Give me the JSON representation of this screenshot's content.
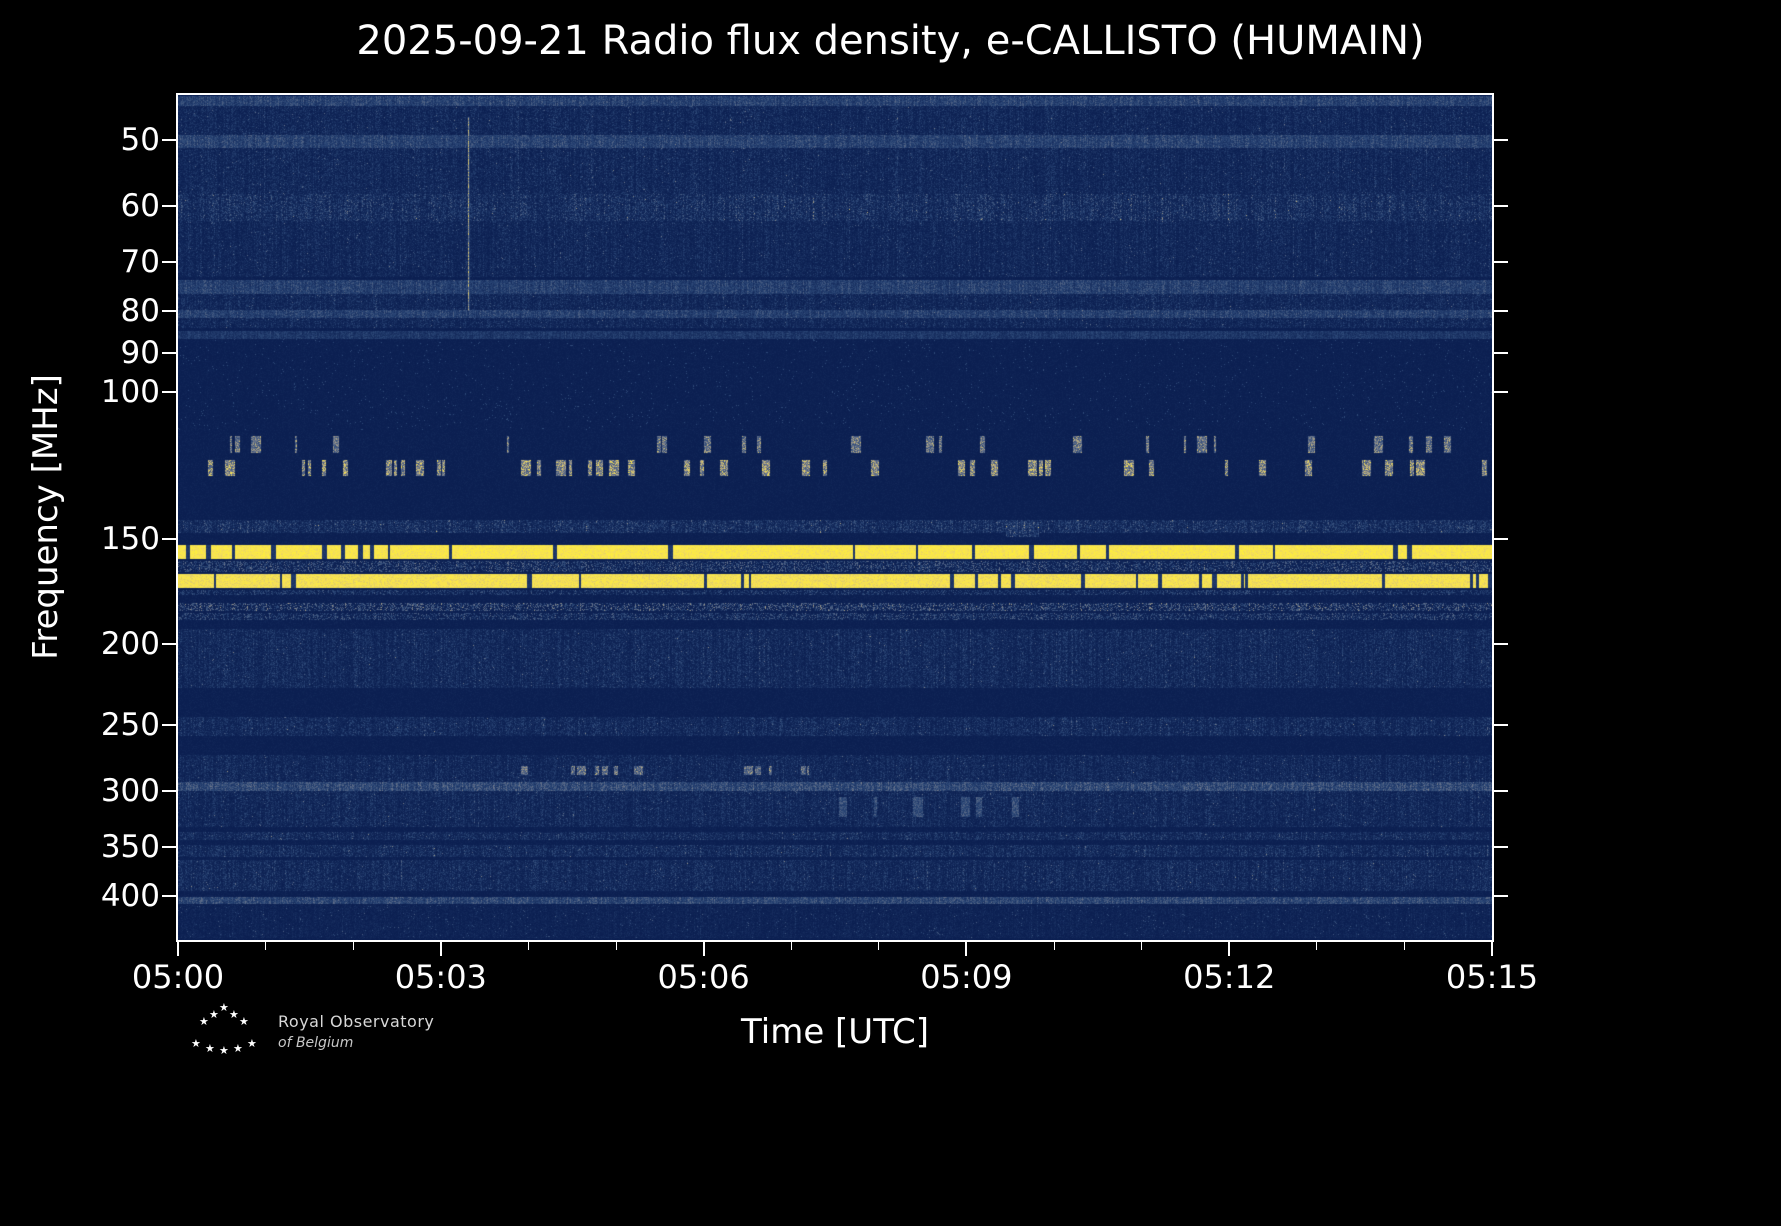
{
  "title": "2025-09-21 Radio flux density, e-CALLISTO (HUMAIN)",
  "axes": {
    "x_label": "Time [UTC]",
    "y_label": "Frequency [MHz]",
    "x_ticks": [
      "05:00",
      "05:03",
      "05:06",
      "05:09",
      "05:12",
      "05:15"
    ],
    "x_minor_per_interval": 3,
    "y_ticks": [
      50,
      60,
      70,
      80,
      90,
      100,
      150,
      200,
      250,
      300,
      350,
      400
    ],
    "y_scale": "log"
  },
  "footer": {
    "logo_line1": "Royal Observatory",
    "logo_line2": "of  Belgium",
    "star_glyph": "★"
  },
  "chart_data": {
    "type": "heatmap",
    "title": "2025-09-21 Radio flux density, e-CALLISTO (HUMAIN)",
    "xlabel": "Time [UTC]",
    "ylabel": "Frequency [MHz]",
    "x_range_utc": [
      "05:00",
      "05:15"
    ],
    "x_tick_labels": [
      "05:00",
      "05:03",
      "05:06",
      "05:09",
      "05:12",
      "05:15"
    ],
    "y_tick_labels_mhz": [
      50,
      60,
      70,
      80,
      90,
      100,
      150,
      200,
      250,
      300,
      350,
      400
    ],
    "y_range_mhz": [
      44.2,
      452
    ],
    "y_scale": "log",
    "legend": "none",
    "grid": false,
    "colormap_stops": [
      [
        0.0,
        [
          9,
          28,
          78
        ]
      ],
      [
        0.3,
        [
          42,
          70,
          118
        ]
      ],
      [
        0.55,
        [
          104,
          116,
          140
        ]
      ],
      [
        0.72,
        [
          180,
          168,
          132
        ]
      ],
      [
        0.88,
        [
          244,
          222,
          92
        ]
      ],
      [
        1.0,
        [
          255,
          240,
          58
        ]
      ]
    ],
    "bands": [
      {
        "f1": 44.3,
        "f2": 45.6,
        "type": "line",
        "amp": 0.42
      },
      {
        "f1": 45.6,
        "f2": 58.0,
        "type": "noise",
        "amp": 0.27
      },
      {
        "f1": 49.4,
        "f2": 51.2,
        "type": "line",
        "amp": 0.42
      },
      {
        "f1": 58.0,
        "f2": 62.5,
        "type": "noise",
        "amp": 0.42
      },
      {
        "f1": 62.5,
        "f2": 73.0,
        "type": "noise",
        "amp": 0.25
      },
      {
        "f1": 73.5,
        "f2": 76.5,
        "type": "line",
        "amp": 0.4
      },
      {
        "f1": 76.5,
        "f2": 84.0,
        "type": "noise",
        "amp": 0.27
      },
      {
        "f1": 79.8,
        "f2": 81.6,
        "type": "line",
        "amp": 0.4
      },
      {
        "f1": 84.5,
        "f2": 86.5,
        "type": "line",
        "amp": 0.3
      },
      {
        "f1": 86.5,
        "f2": 111.0,
        "type": "noise",
        "amp": 0.05
      },
      {
        "f1": 113.0,
        "f2": 118.5,
        "type": "blips",
        "amp": 0.85,
        "density": 0.2
      },
      {
        "f1": 120.5,
        "f2": 126.0,
        "type": "blips",
        "amp": 1.0,
        "density": 0.3
      },
      {
        "f1": 142.5,
        "f2": 147.5,
        "type": "noise",
        "amp": 0.42
      },
      {
        "f1": 143.0,
        "f2": 149.0,
        "type": "noise",
        "amp": 0.52,
        "x1": 0.63,
        "x2": 0.655
      },
      {
        "f1": 152.5,
        "f2": 158.5,
        "type": "solid",
        "amp": 1.0
      },
      {
        "f1": 159.5,
        "f2": 164.0,
        "type": "speck",
        "amp": 0.48
      },
      {
        "f1": 165.0,
        "f2": 171.5,
        "type": "solid",
        "amp": 0.97
      },
      {
        "f1": 172.5,
        "f2": 175.0,
        "type": "speck",
        "amp": 0.35
      },
      {
        "f1": 179.0,
        "f2": 183.0,
        "type": "speck",
        "amp": 0.55
      },
      {
        "f1": 184.0,
        "f2": 187.5,
        "type": "speck",
        "amp": 0.42
      },
      {
        "f1": 192.0,
        "f2": 226.0,
        "type": "noise",
        "amp": 0.3
      },
      {
        "f1": 245.0,
        "f2": 258.0,
        "type": "noise",
        "amp": 0.33
      },
      {
        "f1": 272.0,
        "f2": 293.0,
        "type": "noise",
        "amp": 0.27
      },
      {
        "f1": 280.0,
        "f2": 287.0,
        "type": "blips",
        "amp": 0.8,
        "density": 0.28,
        "x1": 0.26,
        "x2": 0.48
      },
      {
        "f1": 293.0,
        "f2": 300.0,
        "type": "line",
        "amp": 0.5
      },
      {
        "f1": 300.0,
        "f2": 331.0,
        "type": "noise",
        "amp": 0.28
      },
      {
        "f1": 305.0,
        "f2": 322.0,
        "type": "blips",
        "amp": 0.55,
        "density": 0.12,
        "x1": 0.5,
        "x2": 0.64
      },
      {
        "f1": 336.0,
        "f2": 343.0,
        "type": "noise",
        "amp": 0.34
      },
      {
        "f1": 348.0,
        "f2": 360.0,
        "type": "noise",
        "amp": 0.34
      },
      {
        "f1": 363.0,
        "f2": 395.0,
        "type": "noise",
        "amp": 0.31
      },
      {
        "f1": 402.0,
        "f2": 409.0,
        "type": "line",
        "amp": 0.46
      },
      {
        "f1": 411.0,
        "f2": 450.0,
        "type": "noise",
        "amp": 0.15
      }
    ],
    "events": [
      {
        "type": "vertical-burst",
        "time_frac": 0.221,
        "f1": 47,
        "f2": 80,
        "amp": 0.85
      }
    ]
  }
}
